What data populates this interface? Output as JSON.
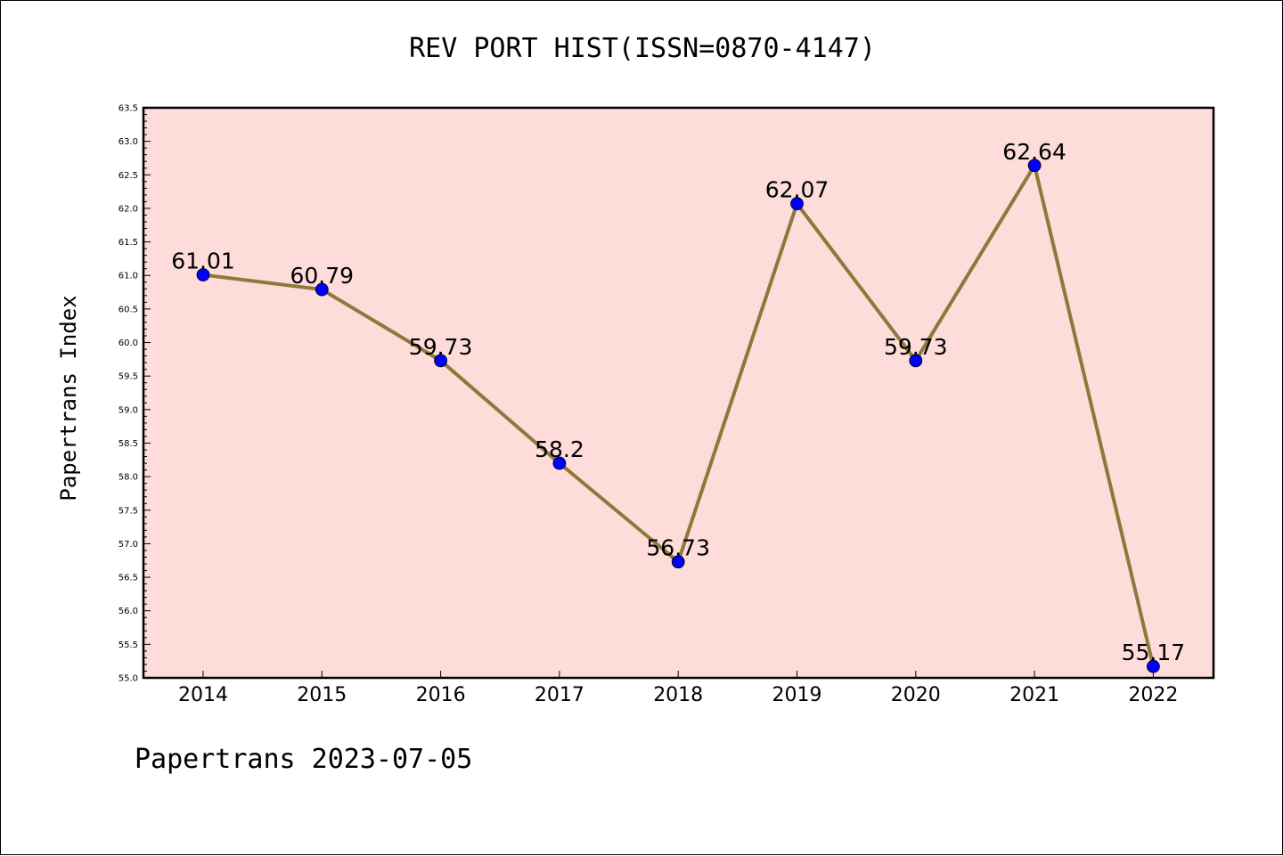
{
  "title": "REV PORT HIST(ISSN=0870-4147)",
  "footer": "Papertrans 2023-07-05",
  "chart_data": {
    "type": "line",
    "title": "REV PORT HIST(ISSN=0870-4147)",
    "xlabel": "",
    "ylabel": "Papertrans Index",
    "categories": [
      "2014",
      "2015",
      "2016",
      "2017",
      "2018",
      "2019",
      "2020",
      "2021",
      "2022"
    ],
    "series": [
      {
        "values": [
          61.01,
          60.79,
          59.73,
          58.2,
          56.73,
          62.07,
          59.73,
          62.64,
          55.17
        ]
      }
    ],
    "data_labels": [
      "61.01",
      "60.79",
      "59.73",
      "58.2",
      "56.73",
      "62.07",
      "59.73",
      "62.64",
      "55.17"
    ],
    "ylim": [
      55.0,
      63.5
    ],
    "yticks": [
      "55.0",
      "55.5",
      "56.0",
      "56.5",
      "57.0",
      "57.5",
      "58.0",
      "58.5",
      "59.0",
      "59.5",
      "60.0",
      "60.5",
      "61.0",
      "61.5",
      "62.0",
      "62.5",
      "63.0",
      "63.5"
    ],
    "grid": false,
    "colors": {
      "plot_background": "#fddcda",
      "line": "#8b7a3a",
      "marker": "#0000ff"
    }
  }
}
